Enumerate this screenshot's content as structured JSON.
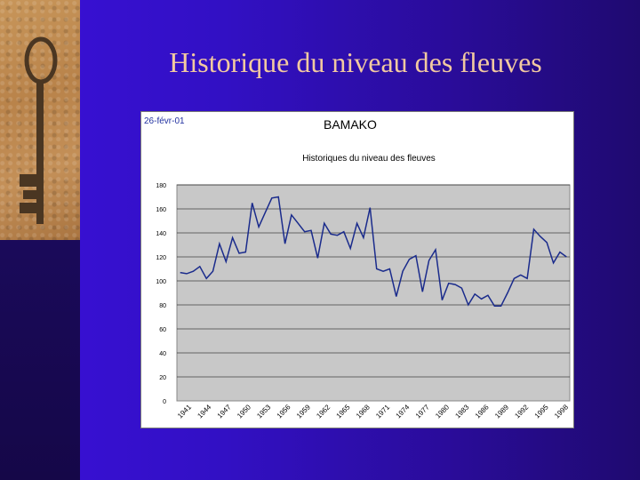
{
  "slide": {
    "title": "Historique du niveau des fleuves"
  },
  "colors": {
    "background": "#3210c4",
    "title_text": "#f2c9a0",
    "series_line": "#1a2b8c",
    "plot_area": "#c8c8c8"
  },
  "chart_data": {
    "type": "line",
    "date_stamp": "26-févr-01",
    "station": "BAMAKO",
    "title": "Historiques du niveau des fleuves",
    "xlabel": "",
    "ylabel": "",
    "ylim": [
      0,
      180
    ],
    "yticks": [
      "0",
      "20",
      "40",
      "60",
      "80",
      "100",
      "120",
      "140",
      "160",
      "180"
    ],
    "xticks": [
      "1941",
      "1944",
      "1947",
      "1950",
      "1953",
      "1956",
      "1959",
      "1962",
      "1965",
      "1968",
      "1971",
      "1974",
      "1977",
      "1980",
      "1983",
      "1986",
      "1989",
      "1992",
      "1995",
      "1998"
    ],
    "grid": true,
    "legend": "none",
    "series": [
      {
        "values": [
          107,
          106,
          108,
          112,
          102,
          108,
          131,
          116,
          136,
          123,
          124,
          165,
          145,
          157,
          169,
          170,
          131,
          155,
          148,
          141,
          142,
          119,
          148,
          139,
          138,
          141,
          127,
          148,
          136,
          161,
          110,
          108,
          110,
          87,
          108,
          118,
          121,
          91,
          117,
          126,
          84,
          98,
          97,
          94,
          80,
          89,
          85,
          88,
          79,
          79,
          90,
          102,
          105,
          102,
          143,
          137,
          132,
          115,
          124,
          120
        ]
      }
    ]
  }
}
